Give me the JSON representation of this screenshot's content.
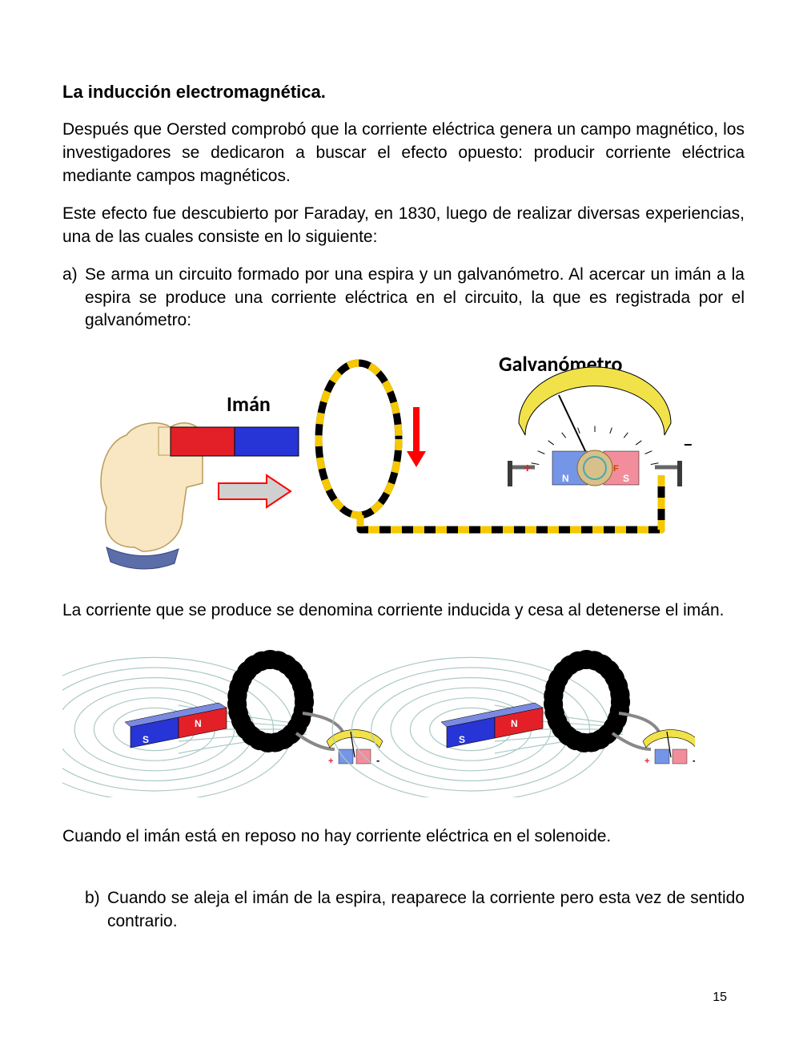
{
  "title": "La inducción electromagnética.",
  "p1": "Después que Oersted comprobó que la corriente eléctrica genera un campo magnético, los investigadores se dedicaron a buscar el efecto opuesto: producir corriente eléctrica mediante campos magnéticos.",
  "p2": "Este efecto fue descubierto por Faraday, en 1830, luego de realizar diversas experiencias, una de las cuales consiste en lo siguiente:",
  "item_a_marker": "a)",
  "item_a_text": "Se arma un circuito formado por una espira y un galvanómetro. Al acercar un imán a la espira se produce una corriente eléctrica en el circuito, la que es registrada por el galvanómetro:",
  "p3": "La corriente que se produce se denomina corriente inducida y cesa al detenerse el imán.",
  "p4": "Cuando el imán está en reposo no hay corriente eléctrica en el solenoide.",
  "item_b_marker": "b)",
  "item_b_text": "Cuando se aleja el imán de la espira, reaparece la corriente pero esta vez de sentido contrario.",
  "page_number": "15",
  "figure1": {
    "type": "diagram",
    "label_magnet": "Imán",
    "label_galvanometer": "Galvanómetro",
    "label_fontsize": 26,
    "label_fontweight": "bold",
    "hand_skin": "#f9e7c3",
    "hand_outline": "#b89a5a",
    "hand_cuff": "#5b6ea9",
    "magnet_n_color": "#e32028",
    "magnet_s_color": "#2734d6",
    "magnet_outline": "#000000",
    "arrow_fill": "#d0d0d0",
    "arrow_outline": "#ff0000",
    "loop_wire_base": "#000000",
    "loop_wire_dash": "#f5c800",
    "loop_wire_width": 9,
    "down_arrow_color": "#ff0000",
    "galv_scale_color": "#f1e24a",
    "galv_needle_color": "#000000",
    "galv_body_blue": "#7596e6",
    "galv_body_red": "#f28e9b",
    "galv_plus_color": "#e32028",
    "galv_minus_color": "#000000",
    "galv_N": "N",
    "galv_S": "S",
    "terminal_color": "#3a3a3a",
    "background": "#ffffff"
  },
  "figure2": {
    "type": "diagram",
    "panels": 2,
    "magnet_n_color": "#e32028",
    "magnet_s_color": "#2734d6",
    "coil_color": "#d6a31b",
    "coil_outline": "#000000",
    "field_line_color": "#abc9c6",
    "galv_scale_color": "#f1e24a",
    "galv_body_blue": "#7596e6",
    "galv_body_red": "#f28e9b",
    "wire_color": "#888888",
    "plus_color": "#e32028",
    "minus_color": "#000000",
    "background": "#ffffff",
    "magnet_S": "S",
    "magnet_N": "N"
  }
}
